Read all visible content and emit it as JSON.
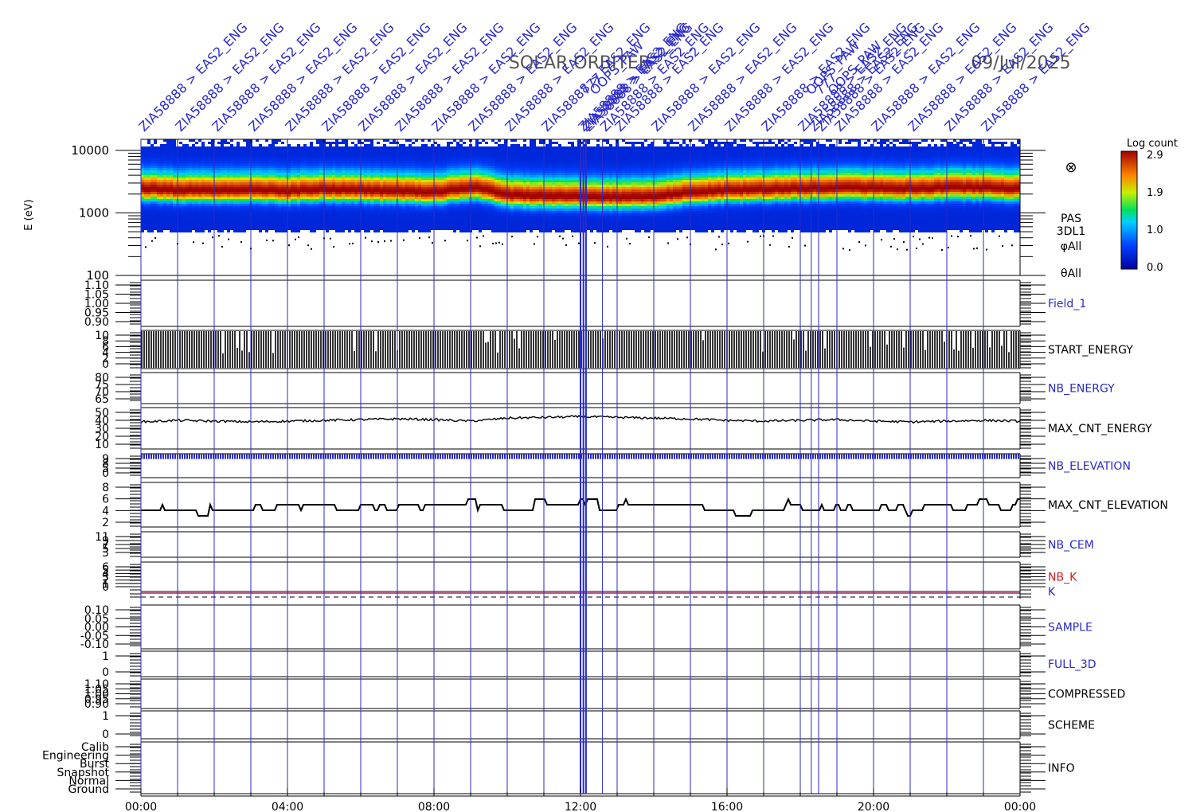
{
  "header": {
    "mission": "SOLAR ORBITER",
    "date": "09/Jul/2025"
  },
  "spectrogram": {
    "ylabel": "E (eV)",
    "instrument_labels": [
      "PAS",
      "3DL1",
      "φAll",
      "θAll"
    ],
    "flag_symbol": "⊗"
  },
  "colorbar": {
    "title": "Log count",
    "ticks": [
      "2.9",
      "1.9",
      "1.0",
      "0.0"
    ]
  },
  "annotations": {
    "item_text": "ZIA58888 > EAS2_ENG",
    "times_hours": [
      0.0,
      1.0,
      2.0,
      3.0,
      4.0,
      5.0,
      6.0,
      7.0,
      8.0,
      9.0,
      10.0,
      11.0,
      12.0,
      12.08,
      12.15,
      12.6,
      13.0,
      14.0,
      15.0,
      16.0,
      17.0,
      18.0,
      18.3,
      18.5,
      19.0,
      20.0,
      21.0,
      22.0,
      23.0
    ],
    "extra_labels": [
      "777",
      "OOPS_PAW",
      "OOPS_PAW",
      "777",
      "OOPS_PAW"
    ]
  },
  "chart_data": {
    "type": "multi-panel time series",
    "title": "SOLAR ORBITER",
    "xlabel": "",
    "x_ticks": [
      "00:00",
      "04:00",
      "08:00",
      "12:00",
      "16:00",
      "20:00",
      "00:00"
    ],
    "xlim_hours": [
      0,
      24
    ],
    "panels": [
      {
        "name": "PAS 3DL1",
        "type": "heatmap",
        "ylabel": "E (eV)",
        "yscale": "log",
        "ylim": [
          100,
          15000
        ],
        "y_ticks": [
          "10000",
          "1000",
          "100"
        ],
        "z_label": "Log count",
        "z_range": [
          0.0,
          2.9
        ],
        "peak_energy_ev_by_hour": [
          2400,
          2250,
          2250,
          2300,
          2200,
          2350,
          2250,
          2200,
          2100,
          2500,
          1900,
          1850,
          1800,
          1750,
          1800,
          2100,
          2250,
          2350,
          2400,
          2500,
          2450,
          2400,
          2500,
          2500,
          2400
        ],
        "low_energy_cutoff_ev": 500,
        "high_energy_cutoff_ev": 12000
      },
      {
        "name": "Field_1",
        "type": "line",
        "y_ticks": [
          "1.10",
          "1.05",
          "1.00",
          "0.95",
          "0.90"
        ],
        "values": []
      },
      {
        "name": "START_ENERGY",
        "type": "bar",
        "y_ticks": [
          "10",
          "8",
          "6",
          "4",
          "2",
          "0"
        ],
        "high": 10,
        "low": 0
      },
      {
        "name": "NB_ENERGY",
        "type": "line",
        "y_ticks": [
          "80",
          "75",
          "70",
          "65"
        ],
        "values": []
      },
      {
        "name": "MAX_CNT_ENERGY",
        "type": "line",
        "y_ticks": [
          "50",
          "40",
          "30",
          "20",
          "10"
        ],
        "values_by_hour": [
          36,
          38,
          37,
          36,
          37,
          38,
          39,
          40,
          39,
          37,
          41,
          42,
          43,
          42,
          41,
          40,
          38,
          37,
          38,
          39,
          37,
          36,
          37,
          38,
          37
        ]
      },
      {
        "name": "NB_ELEVATION",
        "type": "line",
        "y_ticks": [
          "9",
          "8",
          "5",
          "0"
        ],
        "constant": 8.8
      },
      {
        "name": "MAX_CNT_ELEVATION",
        "type": "line",
        "y_ticks": [
          "8",
          "6",
          "4",
          "2"
        ],
        "values_by_hour": [
          4,
          4,
          4,
          4,
          4,
          4.5,
          4.5,
          4.5,
          4.5,
          4.5,
          4.5,
          4.5,
          5,
          5,
          4.5,
          4,
          4,
          4.5,
          4.5,
          4.5,
          4,
          4,
          4.5,
          4.5,
          4.5
        ]
      },
      {
        "name": "NB_CEM",
        "type": "line",
        "y_ticks": [
          "11",
          "9",
          "7",
          "5",
          "3"
        ],
        "values": []
      },
      {
        "name": "NB_K",
        "type": "line",
        "y_ticks": [
          "6",
          "5",
          "4",
          "3",
          "2",
          "1",
          "0"
        ],
        "constant": 1
      },
      {
        "name": "K",
        "type": "line",
        "constant": 0
      },
      {
        "name": "SAMPLE",
        "type": "line",
        "y_ticks": [
          "0.10",
          "0.05",
          "0.00",
          "-0.05",
          "-0.10"
        ],
        "values": []
      },
      {
        "name": "FULL_3D",
        "type": "line",
        "y_ticks": [
          "1",
          "0"
        ],
        "values": []
      },
      {
        "name": "COMPRESSED",
        "type": "line",
        "y_ticks": [
          "1.10",
          "1.05",
          "1.00",
          "0.95",
          "0.90"
        ],
        "values": []
      },
      {
        "name": "SCHEME",
        "type": "line",
        "y_ticks": [
          "1",
          "0"
        ],
        "values": []
      },
      {
        "name": "INFO",
        "type": "line",
        "y_ticks": [
          "Calib",
          "Engineering",
          "Burst",
          "Snapshot",
          "Normal",
          "Ground"
        ],
        "values": []
      }
    ]
  }
}
